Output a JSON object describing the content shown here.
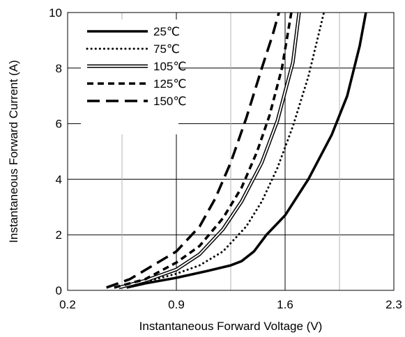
{
  "chart_data": {
    "type": "line",
    "xlabel": "Instantaneous Forward Voltage (V)",
    "ylabel": "Instantaneous Forward Current (A)",
    "xlim": [
      0.2,
      2.3
    ],
    "ylim": [
      0,
      10
    ],
    "xticks": [
      0.2,
      0.9,
      1.6,
      2.3
    ],
    "xtick_labels": [
      "0.2",
      "0.9",
      "1.6",
      "2.3"
    ],
    "yticks": [
      0,
      2,
      4,
      6,
      8,
      10
    ],
    "ytick_labels": [
      "0",
      "2",
      "4",
      "6",
      "8",
      "10"
    ],
    "x_minor_gridlines": [
      0.55,
      1.25,
      1.95
    ],
    "grid": true,
    "legend_position": "top-left",
    "series": [
      {
        "name": "25℃",
        "style": "solid-thick",
        "points": [
          [
            0.58,
            0.1
          ],
          [
            0.7,
            0.25
          ],
          [
            0.9,
            0.45
          ],
          [
            1.1,
            0.7
          ],
          [
            1.25,
            0.9
          ],
          [
            1.32,
            1.05
          ],
          [
            1.4,
            1.4
          ],
          [
            1.48,
            2.0
          ],
          [
            1.6,
            2.7
          ],
          [
            1.75,
            4.0
          ],
          [
            1.9,
            5.6
          ],
          [
            2.0,
            7.0
          ],
          [
            2.08,
            8.8
          ],
          [
            2.12,
            10.0
          ]
        ]
      },
      {
        "name": "75℃",
        "style": "dotted",
        "points": [
          [
            0.55,
            0.1
          ],
          [
            0.7,
            0.3
          ],
          [
            0.9,
            0.6
          ],
          [
            1.05,
            0.9
          ],
          [
            1.2,
            1.4
          ],
          [
            1.35,
            2.3
          ],
          [
            1.45,
            3.2
          ],
          [
            1.55,
            4.4
          ],
          [
            1.65,
            5.9
          ],
          [
            1.75,
            7.7
          ],
          [
            1.85,
            10.0
          ]
        ]
      },
      {
        "name": "105℃",
        "style": "double",
        "points": [
          [
            0.53,
            0.1
          ],
          [
            0.7,
            0.35
          ],
          [
            0.9,
            0.75
          ],
          [
            1.05,
            1.3
          ],
          [
            1.2,
            2.2
          ],
          [
            1.32,
            3.2
          ],
          [
            1.45,
            4.6
          ],
          [
            1.55,
            6.1
          ],
          [
            1.65,
            8.2
          ],
          [
            1.69,
            10.0
          ]
        ]
      },
      {
        "name": "125℃",
        "style": "short-dash",
        "points": [
          [
            0.5,
            0.1
          ],
          [
            0.7,
            0.4
          ],
          [
            0.9,
            1.0
          ],
          [
            1.05,
            1.6
          ],
          [
            1.2,
            2.6
          ],
          [
            1.32,
            3.7
          ],
          [
            1.42,
            5.0
          ],
          [
            1.5,
            6.3
          ],
          [
            1.58,
            8.0
          ],
          [
            1.64,
            10.0
          ]
        ]
      },
      {
        "name": "150℃",
        "style": "long-dash",
        "points": [
          [
            0.45,
            0.1
          ],
          [
            0.6,
            0.4
          ],
          [
            0.75,
            0.9
          ],
          [
            0.9,
            1.4
          ],
          [
            1.05,
            2.3
          ],
          [
            1.15,
            3.3
          ],
          [
            1.25,
            4.6
          ],
          [
            1.35,
            6.2
          ],
          [
            1.45,
            8.0
          ],
          [
            1.52,
            9.2
          ],
          [
            1.56,
            10.0
          ]
        ]
      }
    ]
  }
}
